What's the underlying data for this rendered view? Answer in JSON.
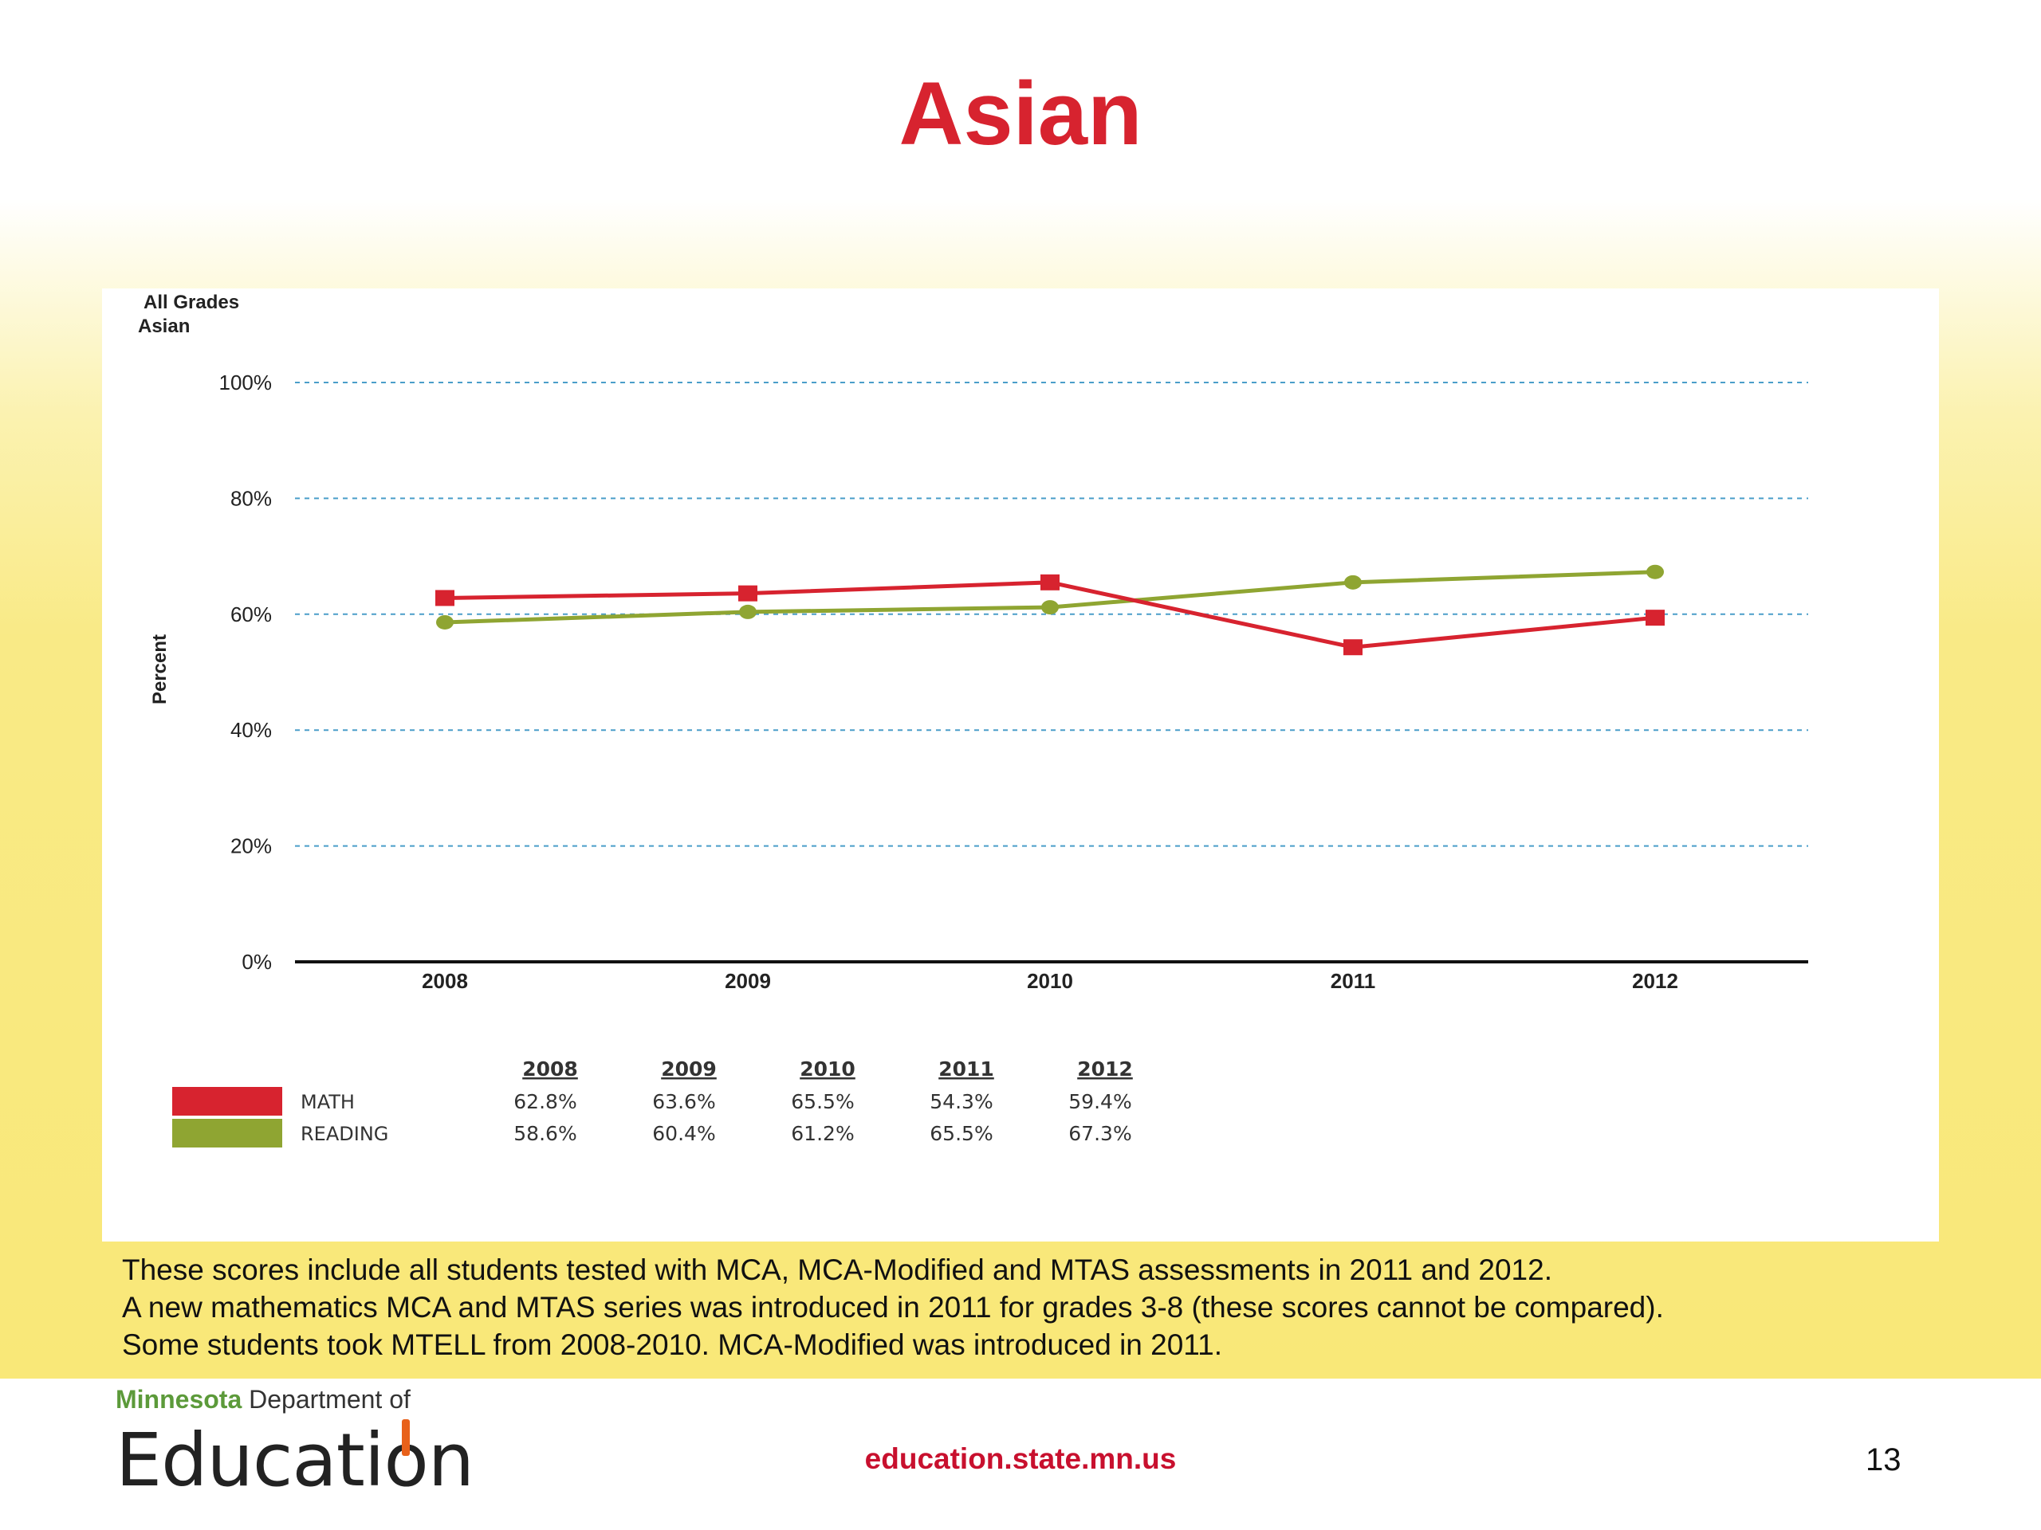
{
  "slide": {
    "title": "Asian",
    "notes": [
      "These scores include all students tested with MCA, MCA-Modified and MTAS assessments in 2011 and 2012.",
      "A new mathematics MCA and MTAS series was introduced in 2011 for grades 3-8 (these scores cannot be compared).",
      "Some students took MTELL from 2008-2010.  MCA-Modified was introduced in 2011."
    ],
    "url": "education.state.mn.us",
    "page_number": "13"
  },
  "logo": {
    "state": "Minnesota",
    "dept": " Department of",
    "name_part1": "Educati",
    "name_o": "o",
    "name_part2": "n"
  },
  "chart_data": {
    "type": "line",
    "title_lines": [
      "All Grades",
      "Asian"
    ],
    "ylabel": "Percent",
    "xlabel": "",
    "ylim": [
      0,
      100
    ],
    "yticks": [
      0,
      20,
      40,
      60,
      80,
      100
    ],
    "ytick_labels": [
      "0%",
      "20%",
      "40%",
      "60%",
      "80%",
      "100%"
    ],
    "grid": true,
    "categories": [
      "2008",
      "2009",
      "2010",
      "2011",
      "2012"
    ],
    "series": [
      {
        "name": "MATH",
        "values": [
          62.8,
          63.6,
          65.5,
          54.3,
          59.4
        ],
        "labels": [
          "62.8%",
          "63.6%",
          "65.5%",
          "54.3%",
          "59.4%"
        ],
        "color": "#d7232f",
        "marker": "square"
      },
      {
        "name": "READING",
        "values": [
          58.6,
          60.4,
          61.2,
          65.5,
          67.3
        ],
        "labels": [
          "58.6%",
          "60.4%",
          "61.2%",
          "65.5%",
          "67.3%"
        ],
        "color": "#8fa532",
        "marker": "circle"
      }
    ],
    "legend_placement": "bottom-left table"
  },
  "colors": {
    "title_red": "#d7232f",
    "math": "#d7232f",
    "reading": "#8fa532",
    "grid": "#4a9ec9",
    "url_red": "#c8102e",
    "logo_green": "#5c9a3a",
    "logo_orange": "#e8611a"
  }
}
